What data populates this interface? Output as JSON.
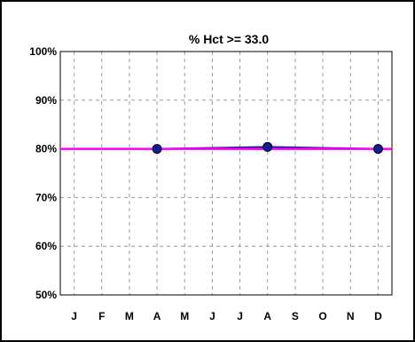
{
  "chart_data": {
    "type": "line",
    "title": "% Hct >= 33.0",
    "xlabel": "",
    "ylabel": "",
    "categories": [
      "J",
      "F",
      "M",
      "A",
      "M",
      "J",
      "J",
      "A",
      "S",
      "O",
      "N",
      "D"
    ],
    "y_ticks": [
      "100%",
      "90%",
      "80%",
      "70%",
      "60%",
      "50%"
    ],
    "ylim": [
      50,
      100
    ],
    "grid": true,
    "legend": "none",
    "series": [
      {
        "color": "#1a1a8c",
        "marker": "circle",
        "values": [
          null,
          null,
          null,
          80,
          null,
          null,
          null,
          80.4,
          null,
          null,
          null,
          80
        ]
      }
    ],
    "reference_line": {
      "value": 80,
      "color": "#ff00ff"
    }
  }
}
